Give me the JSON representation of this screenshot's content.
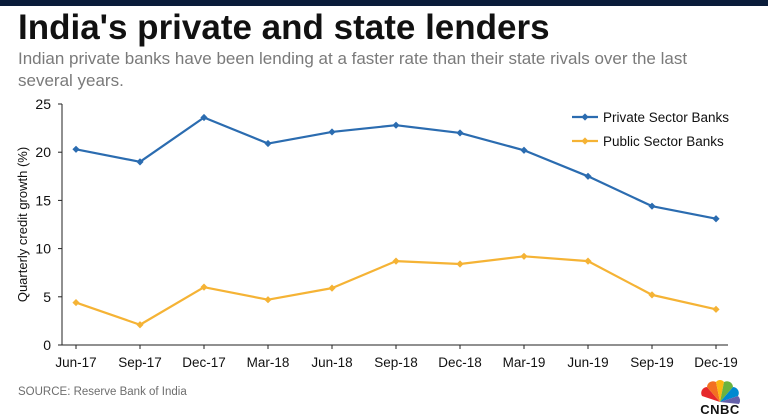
{
  "header": {
    "title": "India's private and state lenders",
    "subtitle": "Indian private banks have been lending at a faster rate than their state rivals over the last several years."
  },
  "footer": {
    "source": "SOURCE: Reserve Bank of India",
    "logo_text": "CNBC"
  },
  "colors": {
    "private": "#2b6cb0",
    "public": "#f5b335",
    "text": "#111111",
    "grid": "#bfbfbf"
  },
  "chart_data": {
    "type": "line",
    "title": "India's private and state lenders",
    "xlabel": "",
    "ylabel": "Quarterly credit growth (%)",
    "ylim": [
      0,
      25
    ],
    "yticks": [
      0,
      5,
      10,
      15,
      20,
      25
    ],
    "grid": false,
    "legend_position": "top-right",
    "categories": [
      "Jun-17",
      "Sep-17",
      "Dec-17",
      "Mar-18",
      "Jun-18",
      "Sep-18",
      "Dec-18",
      "Mar-19",
      "Jun-19",
      "Sep-19",
      "Dec-19"
    ],
    "series": [
      {
        "name": "Private Sector Banks",
        "color": "#2b6cb0",
        "values": [
          20.3,
          19.0,
          23.6,
          20.9,
          22.1,
          22.8,
          22.0,
          20.2,
          17.5,
          14.4,
          13.1
        ]
      },
      {
        "name": "Public Sector Banks",
        "color": "#f5b335",
        "values": [
          4.4,
          2.1,
          6.0,
          4.7,
          5.9,
          8.7,
          8.4,
          9.2,
          8.7,
          5.2,
          3.7
        ]
      }
    ]
  }
}
